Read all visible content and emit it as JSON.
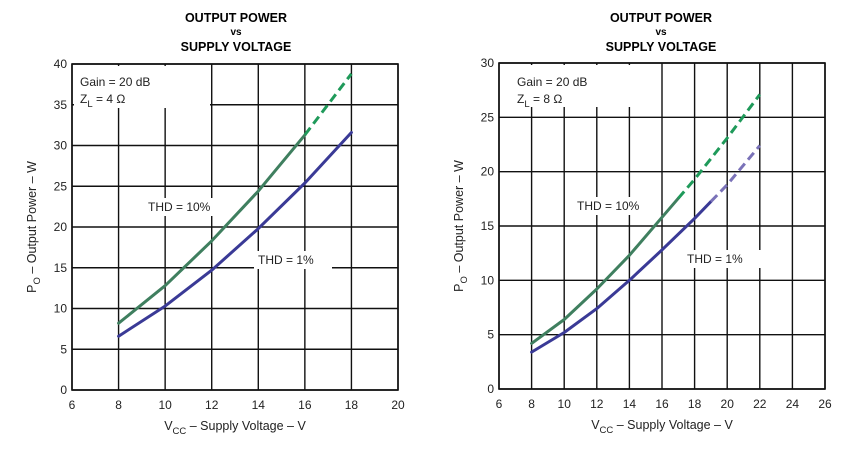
{
  "chart_data": [
    {
      "type": "line",
      "title": "OUTPUT POWER",
      "title_mid": "vs",
      "subtitle": "SUPPLY VOLTAGE",
      "xlabel_main": "V",
      "xlabel_sub": "CC",
      "xlabel_rest": " – Supply Voltage – V",
      "ylabel_main": "P",
      "ylabel_sub": "O",
      "ylabel_rest": " – Output Power – W",
      "xlim": [
        6,
        20
      ],
      "ylim": [
        0,
        40
      ],
      "xticks": [
        6,
        8,
        10,
        12,
        14,
        16,
        18,
        20
      ],
      "yticks": [
        0,
        5,
        10,
        15,
        20,
        25,
        30,
        35,
        40
      ],
      "grid": true,
      "annotation_line1": "Gain = 20 dB",
      "annotation_line2_main": "Z",
      "annotation_line2_sub": "L",
      "annotation_line2_rest": " = 4 Ω",
      "series": [
        {
          "name": "THD = 10%",
          "color": "#3f7f5f",
          "dash_color": "#1f9a5a",
          "x": [
            8,
            10,
            12,
            14,
            16,
            18
          ],
          "y": [
            8.2,
            12.8,
            18.3,
            24.4,
            31.3,
            38.8
          ],
          "dashed_from_x": 16
        },
        {
          "name": "THD = 1%",
          "color": "#3a3a96",
          "x": [
            8,
            10,
            12,
            14,
            16,
            18
          ],
          "y": [
            6.6,
            10.3,
            14.7,
            19.8,
            25.4,
            31.6
          ]
        }
      ]
    },
    {
      "type": "line",
      "title": "OUTPUT POWER",
      "title_mid": "vs",
      "subtitle": "SUPPLY VOLTAGE",
      "xlabel_main": "V",
      "xlabel_sub": "CC",
      "xlabel_rest": " – Supply Voltage – V",
      "ylabel_main": "P",
      "ylabel_sub": "O",
      "ylabel_rest": " – Output Power – W",
      "xlim": [
        6,
        26
      ],
      "ylim": [
        0,
        30
      ],
      "xticks": [
        6,
        8,
        10,
        12,
        14,
        16,
        18,
        20,
        22,
        24,
        26
      ],
      "yticks": [
        0,
        5,
        10,
        15,
        20,
        25,
        30
      ],
      "grid": true,
      "annotation_line1": "Gain = 20 dB",
      "annotation_line2_main": "Z",
      "annotation_line2_sub": "L",
      "annotation_line2_rest": " = 8 Ω",
      "series": [
        {
          "name": "THD = 10%",
          "color": "#3f7f5f",
          "dash_color": "#1f9a5a",
          "x": [
            8,
            10,
            12,
            14,
            16,
            18,
            20,
            22
          ],
          "y": [
            4.2,
            6.4,
            9.2,
            12.3,
            15.8,
            19.3,
            23.1,
            27.1
          ],
          "dashed_from_x": 17
        },
        {
          "name": "THD = 1%",
          "color": "#3a3a96",
          "dash_color": "#7a72b8",
          "x": [
            8,
            10,
            12,
            14,
            16,
            18,
            20,
            22
          ],
          "y": [
            3.4,
            5.2,
            7.4,
            10.0,
            12.8,
            15.7,
            18.8,
            22.4
          ],
          "dashed_from_x": 19
        }
      ]
    }
  ]
}
